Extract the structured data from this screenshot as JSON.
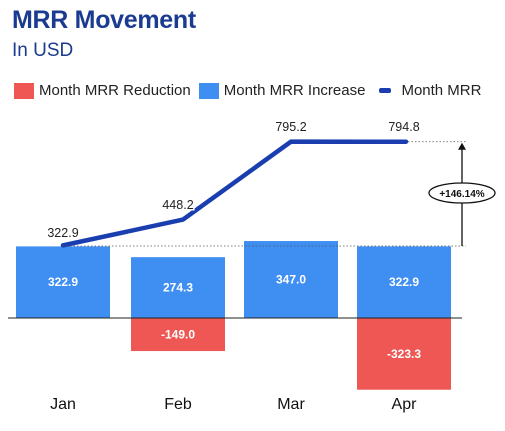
{
  "header": {
    "title": "MRR Movement",
    "subtitle": "In USD"
  },
  "legend": {
    "reduction": "Month MRR Reduction",
    "increase": "Month MRR Increase",
    "mrr": "Month MRR"
  },
  "colors": {
    "increase": "#3f8ef2",
    "reduction": "#ee5753",
    "line": "#1a3eb0",
    "title": "#1a3b8f"
  },
  "chart_data": {
    "type": "bar",
    "title": "MRR Movement",
    "subtitle": "In USD",
    "categories": [
      "Jan",
      "Feb",
      "Mar",
      "Apr"
    ],
    "series": [
      {
        "name": "Month MRR Reduction",
        "type": "bar",
        "values": [
          0,
          -149.0,
          0,
          -323.3
        ],
        "labels": [
          "",
          "-149.0",
          "",
          "-323.3"
        ]
      },
      {
        "name": "Month MRR Increase",
        "type": "bar",
        "values": [
          322.9,
          274.3,
          347.0,
          322.9
        ],
        "labels": [
          "322.9",
          "274.3",
          "347.0",
          "322.9"
        ]
      },
      {
        "name": "Month MRR",
        "type": "line",
        "values": [
          322.9,
          448.2,
          795.2,
          794.8
        ],
        "labels": [
          "322.9",
          "448.2",
          "795.2",
          "794.8"
        ]
      }
    ],
    "annotation": "+146.14%",
    "legend_position": "top-left",
    "grid": false
  }
}
